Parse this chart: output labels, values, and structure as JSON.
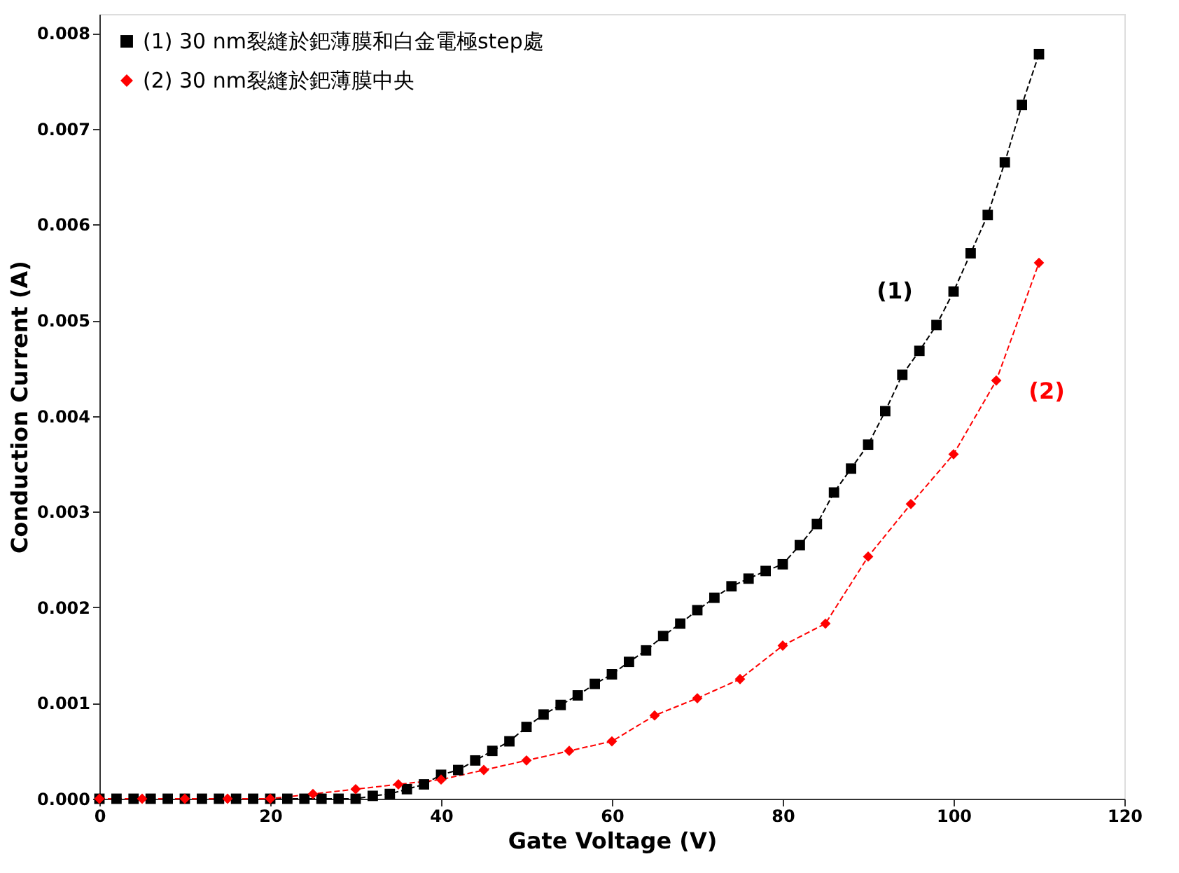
{
  "chart_data": {
    "type": "line",
    "xlabel": "Gate Voltage (V)",
    "ylabel": "Conduction Current (A)",
    "xlim": [
      0,
      120
    ],
    "xticks": [
      0,
      20,
      40,
      60,
      80,
      100,
      120
    ],
    "ylim": [
      0,
      0.0082
    ],
    "yticks": [
      {
        "value": 0,
        "label": "0.000"
      },
      {
        "value": 0.001,
        "label": "0.001"
      },
      {
        "value": 0.002,
        "label": "0.002"
      },
      {
        "value": 0.003,
        "label": "0.003"
      },
      {
        "value": 0.004,
        "label": "0.004"
      },
      {
        "value": 0.005,
        "label": "0.005"
      },
      {
        "value": 0.006,
        "label": "0.006"
      },
      {
        "value": 0.007,
        "label": "0.007"
      },
      {
        "value": 0.008,
        "label": "0.008"
      }
    ],
    "grid": false,
    "legend": "top left",
    "annotations": [
      "(1)",
      "(2)"
    ],
    "series": [
      {
        "name": "(1) 30 nm裂縫於鈀薄膜和白金電極step處",
        "color": "#000000",
        "marker": "square",
        "line_style": "dashed",
        "x": [
          0,
          2,
          4,
          6,
          8,
          10,
          12,
          14,
          16,
          18,
          20,
          22,
          24,
          26,
          28,
          30,
          32,
          34,
          36,
          38,
          40,
          42,
          44,
          46,
          48,
          50,
          52,
          54,
          56,
          58,
          60,
          62,
          64,
          66,
          68,
          70,
          72,
          74,
          76,
          78,
          80,
          82,
          84,
          86,
          88,
          90,
          92,
          94,
          96,
          98,
          100,
          102,
          104,
          106,
          108,
          110
        ],
        "values": [
          0,
          0,
          0,
          0,
          0,
          0,
          0,
          0,
          0,
          0,
          0,
          0,
          0,
          0,
          0,
          0,
          3e-05,
          5e-05,
          0.0001,
          0.00015,
          0.00025,
          0.0003,
          0.0004,
          0.0005,
          0.0006,
          0.00075,
          0.00088,
          0.00098,
          0.00108,
          0.0012,
          0.0013,
          0.00143,
          0.00155,
          0.0017,
          0.00183,
          0.00197,
          0.0021,
          0.00222,
          0.0023,
          0.00238,
          0.00245,
          0.00265,
          0.00287,
          0.0032,
          0.00345,
          0.0037,
          0.00405,
          0.00443,
          0.00468,
          0.00495,
          0.0053,
          0.0057,
          0.0061,
          0.00665,
          0.00725,
          0.00778
        ]
      },
      {
        "name": "(2) 30 nm裂縫於鈀薄膜中央",
        "color": "#ff0000",
        "marker": "diamond",
        "line_style": "dashed",
        "x": [
          0,
          5,
          10,
          15,
          20,
          25,
          30,
          35,
          40,
          45,
          50,
          55,
          60,
          65,
          70,
          75,
          80,
          85,
          90,
          95,
          100,
          105,
          110
        ],
        "values": [
          0,
          0,
          0,
          0,
          0,
          5e-05,
          0.0001,
          0.00015,
          0.0002,
          0.0003,
          0.0004,
          0.0005,
          0.0006,
          0.00087,
          0.00105,
          0.00125,
          0.0016,
          0.00183,
          0.00253,
          0.00308,
          0.0036,
          0.00437,
          0.0056
        ]
      }
    ]
  }
}
